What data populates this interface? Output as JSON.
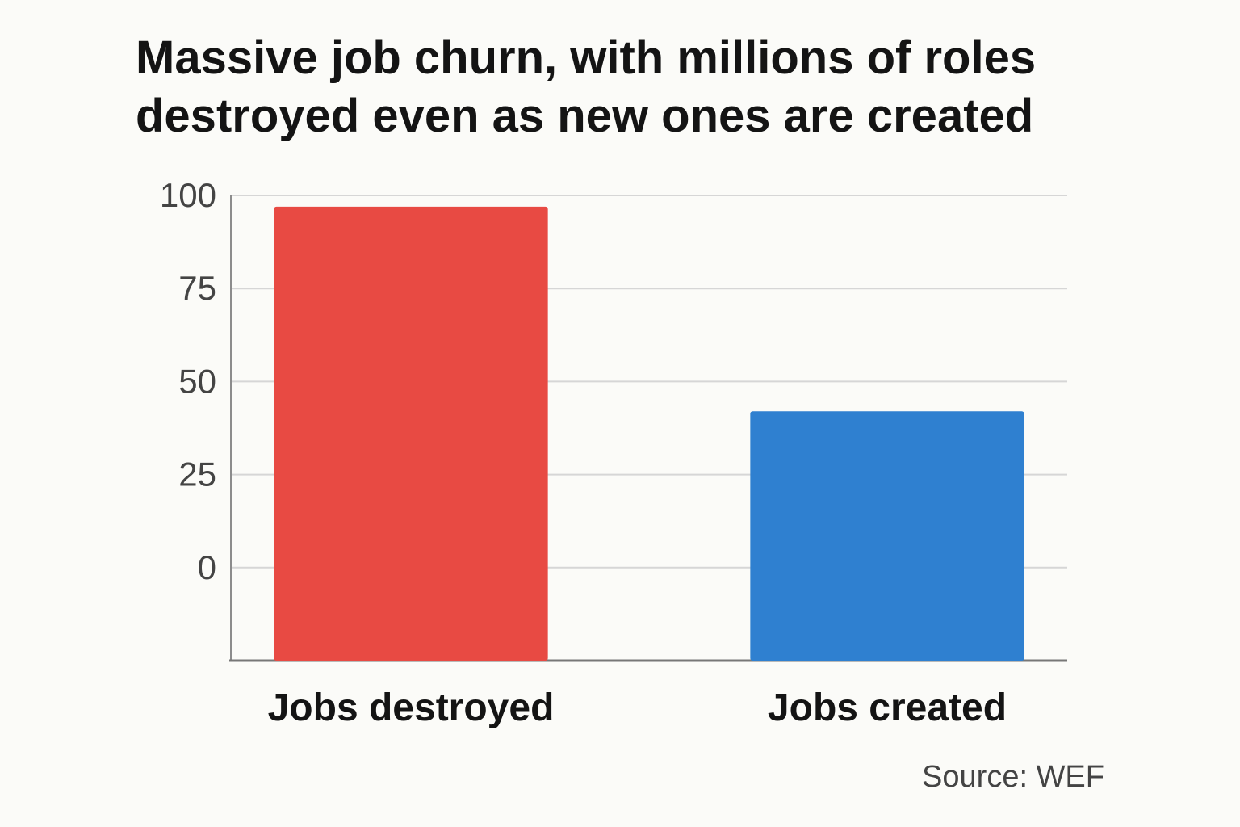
{
  "chart_data": {
    "type": "bar",
    "title_lines": [
      "Massive job churn, with millions of roles",
      "destroyed even as new ones are created"
    ],
    "categories": [
      "Jobs destroyed",
      "Jobs created"
    ],
    "values": [
      97,
      42
    ],
    "ylim": [
      -25,
      100
    ],
    "yticks": [
      100,
      75,
      50,
      25,
      0
    ],
    "ytick_labels": [
      "100",
      "75",
      "50",
      "25",
      "0"
    ],
    "xlabel": "",
    "ylabel": "",
    "grid": true,
    "legend": "none",
    "bar_colors": [
      "#e84a43",
      "#2f80d0"
    ],
    "source": "Source: WEF"
  }
}
